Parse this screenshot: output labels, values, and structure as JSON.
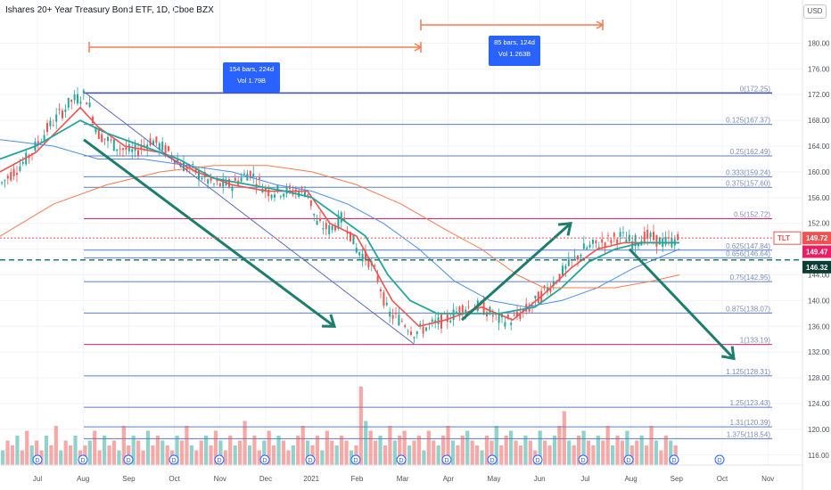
{
  "header": {
    "title": "Ishares 20+ Year Treasury Bond ETF, 1D, Cboe BZX",
    "currency_button": "USD"
  },
  "colors": {
    "up": "#26a69a",
    "down": "#ef5350",
    "fib_line": "#5b7ec9",
    "fib_key": "#e91e63",
    "ema_fast": "#ef5350",
    "ema_green": "#26a69a",
    "ma_blue": "#4a8fe0",
    "ma_orange": "#f57c51",
    "arrow": "#1e7d6c",
    "measure": "#f57c51",
    "callout": "#2962ff"
  },
  "annotations": {
    "range1_bars": "154 bars, 224d",
    "range1_vol": "Vol 1.79B",
    "range2_bars": "85 bars, 124d",
    "range2_vol": "Vol 1.263B",
    "symbol_tag": "TLT"
  },
  "chart_data": {
    "type": "candlestick",
    "title": "Ishares 20+ Year Treasury Bond ETF, 1D, Cboe BZX",
    "x_ticks": [
      "Jul",
      "Aug",
      "Sep",
      "Oct",
      "Nov",
      "Dec",
      "2021",
      "Feb",
      "Mar",
      "Apr",
      "May",
      "Jun",
      "Jul",
      "Aug",
      "Sep",
      "Oct",
      "Nov"
    ],
    "y_ticks": [
      116,
      120,
      124,
      128,
      132,
      136,
      140,
      144,
      148,
      152,
      156,
      160,
      164,
      168,
      172,
      176,
      180
    ],
    "ylim": [
      115,
      182
    ],
    "price_labels": {
      "last": "149.72",
      "ma": "149.47",
      "level": "146.32"
    },
    "fib_levels": [
      {
        "label": "0(172.25)",
        "value": 172.25
      },
      {
        "label": "0.125(167.37)",
        "value": 167.37
      },
      {
        "label": "0.25(162.49)",
        "value": 162.49
      },
      {
        "label": "0.333(159.24)",
        "value": 159.24
      },
      {
        "label": "0.375(157.60)",
        "value": 157.6
      },
      {
        "label": "0.5(152.72)",
        "value": 152.72
      },
      {
        "label": "0.625(147.84)",
        "value": 147.84
      },
      {
        "label": "0.656(146.64)",
        "value": 146.64
      },
      {
        "label": "0.75(142.95)",
        "value": 142.95
      },
      {
        "label": "0.875(138.07)",
        "value": 138.07
      },
      {
        "label": "1(133.19)",
        "value": 133.19
      },
      {
        "label": "1.125(128.31)",
        "value": 128.31
      },
      {
        "label": "1.25(123.43)",
        "value": 123.43
      },
      {
        "label": "1.31(120.39)",
        "value": 120.39
      },
      {
        "label": "1.375(118.54)",
        "value": 118.54
      }
    ],
    "price_path": [
      [
        0,
        158
      ],
      [
        30,
        162
      ],
      [
        55,
        167
      ],
      [
        80,
        171
      ],
      [
        96,
        172
      ],
      [
        110,
        166
      ],
      [
        130,
        164
      ],
      [
        150,
        163
      ],
      [
        170,
        165
      ],
      [
        190,
        163
      ],
      [
        205,
        161
      ],
      [
        220,
        160
      ],
      [
        240,
        158
      ],
      [
        260,
        158
      ],
      [
        280,
        160
      ],
      [
        300,
        157
      ],
      [
        320,
        157
      ],
      [
        345,
        157
      ],
      [
        355,
        152
      ],
      [
        370,
        151
      ],
      [
        385,
        153
      ],
      [
        400,
        148
      ],
      [
        415,
        146
      ],
      [
        425,
        143
      ],
      [
        435,
        138
      ],
      [
        450,
        137
      ],
      [
        465,
        135
      ],
      [
        480,
        136
      ],
      [
        500,
        137
      ],
      [
        520,
        139
      ],
      [
        540,
        139
      ],
      [
        560,
        137
      ],
      [
        575,
        137
      ],
      [
        595,
        139
      ],
      [
        615,
        142
      ],
      [
        635,
        145
      ],
      [
        655,
        148
      ],
      [
        675,
        149
      ],
      [
        695,
        150
      ],
      [
        710,
        149
      ],
      [
        725,
        150
      ],
      [
        745,
        149
      ],
      [
        762,
        149.5
      ]
    ],
    "series": [
      {
        "name": "EMA fast",
        "points": [
          [
            0,
            160
          ],
          [
            40,
            163
          ],
          [
            90,
            170
          ],
          [
            110,
            167
          ],
          [
            140,
            164
          ],
          [
            180,
            163
          ],
          [
            220,
            160
          ],
          [
            260,
            158
          ],
          [
            300,
            157
          ],
          [
            345,
            157
          ],
          [
            370,
            152
          ],
          [
            400,
            150
          ],
          [
            420,
            145
          ],
          [
            440,
            140
          ],
          [
            470,
            136
          ],
          [
            500,
            137
          ],
          [
            540,
            139
          ],
          [
            575,
            137
          ],
          [
            610,
            141
          ],
          [
            640,
            145
          ],
          [
            670,
            148
          ],
          [
            700,
            149
          ],
          [
            730,
            149
          ],
          [
            762,
            149
          ]
        ]
      },
      {
        "name": "EMA green",
        "points": [
          [
            0,
            162
          ],
          [
            40,
            164
          ],
          [
            90,
            168
          ],
          [
            120,
            166
          ],
          [
            160,
            164
          ],
          [
            200,
            162
          ],
          [
            240,
            159
          ],
          [
            280,
            158
          ],
          [
            320,
            157
          ],
          [
            350,
            156
          ],
          [
            380,
            153
          ],
          [
            410,
            150
          ],
          [
            435,
            144
          ],
          [
            460,
            140
          ],
          [
            490,
            138
          ],
          [
            520,
            138
          ],
          [
            560,
            138
          ],
          [
            600,
            139
          ],
          [
            630,
            142
          ],
          [
            660,
            146
          ],
          [
            690,
            148
          ],
          [
            720,
            149
          ],
          [
            762,
            149
          ]
        ]
      },
      {
        "name": "MA blue",
        "points": [
          [
            0,
            165
          ],
          [
            60,
            164
          ],
          [
            110,
            162
          ],
          [
            160,
            162
          ],
          [
            210,
            161
          ],
          [
            260,
            160
          ],
          [
            310,
            158
          ],
          [
            350,
            157
          ],
          [
            390,
            155
          ],
          [
            430,
            152
          ],
          [
            470,
            148
          ],
          [
            510,
            143
          ],
          [
            550,
            140
          ],
          [
            590,
            139
          ],
          [
            630,
            140
          ],
          [
            670,
            142
          ],
          [
            710,
            145
          ],
          [
            762,
            148
          ]
        ]
      },
      {
        "name": "MA orange",
        "points": [
          [
            0,
            150
          ],
          [
            60,
            155
          ],
          [
            120,
            158
          ],
          [
            180,
            160
          ],
          [
            240,
            161
          ],
          [
            300,
            161
          ],
          [
            350,
            160
          ],
          [
            400,
            158
          ],
          [
            450,
            155
          ],
          [
            500,
            151
          ],
          [
            540,
            148
          ],
          [
            580,
            144
          ],
          [
            610,
            142
          ],
          [
            650,
            142
          ],
          [
            690,
            142
          ],
          [
            730,
            143
          ],
          [
            762,
            144
          ]
        ]
      }
    ],
    "arrows": [
      {
        "from": [
          94,
          165
        ],
        "to": [
          375,
          136
        ]
      },
      {
        "from": [
          518,
          137
        ],
        "to": [
          640,
          152
        ]
      },
      {
        "from": [
          706,
          148
        ],
        "to": [
          823,
          131
        ]
      }
    ],
    "volume": [
      3,
      5,
      4,
      6,
      3,
      7,
      4,
      5,
      3,
      6,
      4,
      8,
      3,
      5,
      4,
      6,
      3,
      4,
      5,
      7,
      3,
      6,
      4,
      5,
      3,
      8,
      4,
      6,
      5,
      3,
      7,
      4,
      6,
      5,
      4,
      3,
      6,
      5,
      8,
      4,
      3,
      5,
      6,
      4,
      7,
      5,
      3,
      6,
      4,
      5,
      9,
      4,
      6,
      3,
      5,
      7,
      4,
      6,
      5,
      3,
      4,
      6,
      8,
      5,
      4,
      6,
      3,
      7,
      5,
      4,
      6,
      5,
      3,
      4,
      16,
      9,
      7,
      5,
      6,
      4,
      8,
      5,
      6,
      7,
      4,
      5,
      6,
      3,
      7,
      5,
      4,
      6,
      8,
      5,
      4,
      6,
      7,
      5,
      4,
      3,
      6,
      5,
      8,
      4,
      6,
      7,
      5,
      4,
      6,
      5,
      3,
      7,
      5,
      4,
      6,
      8,
      11,
      5,
      4,
      6,
      7,
      5,
      4,
      6,
      5,
      8,
      4,
      6,
      5,
      7,
      4,
      5,
      6,
      4,
      8,
      5,
      3,
      6,
      5,
      4
    ]
  }
}
